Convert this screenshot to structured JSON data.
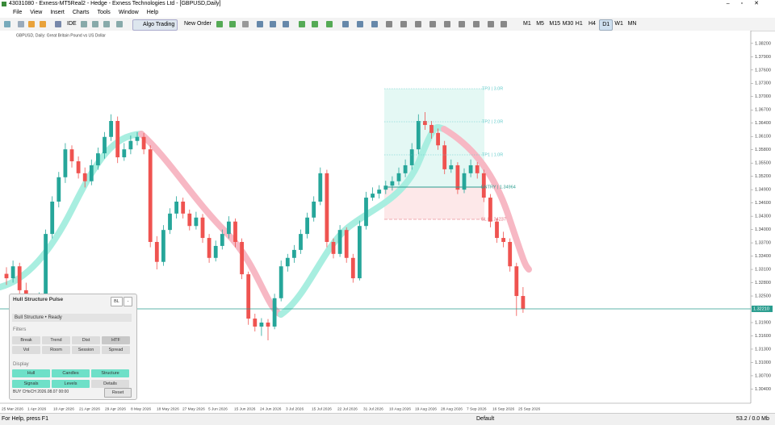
{
  "window": {
    "title": "43031080 - Exness-MT5Real2 - Hedge - Exness Technologies Ltd - [GBPUSD,Daily]",
    "menu": [
      "File",
      "View",
      "Insert",
      "Charts",
      "Tools",
      "Window",
      "Help"
    ]
  },
  "toolbar": {
    "ide": "IDE",
    "algo": "Algo Trading",
    "new_order": "New Order",
    "timeframes": [
      "M1",
      "M5",
      "M15",
      "M30",
      "H1",
      "H4",
      "D1",
      "W1",
      "MN"
    ],
    "active_timeframe": "D1"
  },
  "chart": {
    "symbol_info": "GBPUSD, Daily: Great Britain Pound vs US Dollar",
    "price_axis": [
      {
        "value": 1.382,
        "label": "1.38200"
      },
      {
        "value": 1.379,
        "label": "1.37900"
      },
      {
        "value": 1.376,
        "label": "1.37600"
      },
      {
        "value": 1.373,
        "label": "1.37300"
      },
      {
        "value": 1.37,
        "label": "1.37000"
      },
      {
        "value": 1.367,
        "label": "1.36700"
      },
      {
        "value": 1.364,
        "label": "1.36400"
      },
      {
        "value": 1.361,
        "label": "1.36100"
      },
      {
        "value": 1.358,
        "label": "1.35800"
      },
      {
        "value": 1.355,
        "label": "1.35500"
      },
      {
        "value": 1.352,
        "label": "1.35200"
      },
      {
        "value": 1.349,
        "label": "1.34900"
      },
      {
        "value": 1.346,
        "label": "1.34600"
      },
      {
        "value": 1.343,
        "label": "1.34300"
      },
      {
        "value": 1.34,
        "label": "1.34000"
      },
      {
        "value": 1.337,
        "label": "1.33700"
      },
      {
        "value": 1.334,
        "label": "1.33400"
      },
      {
        "value": 1.331,
        "label": "1.33100"
      },
      {
        "value": 1.328,
        "label": "1.32800"
      },
      {
        "value": 1.325,
        "label": "1.32500"
      },
      {
        "value": 1.319,
        "label": "1.31900"
      },
      {
        "value": 1.316,
        "label": "1.31600"
      },
      {
        "value": 1.313,
        "label": "1.31300"
      },
      {
        "value": 1.31,
        "label": "1.31000"
      },
      {
        "value": 1.307,
        "label": "1.30700"
      },
      {
        "value": 1.304,
        "label": "1.30400"
      }
    ],
    "current_price": {
      "value": 1.3221,
      "label": "1.32210"
    },
    "dates": [
      "25 Mar 2026",
      "1 Apr 2026",
      "10 Apr 2026",
      "21 Apr 2026",
      "29 Apr 2026",
      "8 May 2026",
      "18 May 2026",
      "27 May 2026",
      "5 Jun 2026",
      "15 Jun 2026",
      "24 Jun 2026",
      "3 Jul 2026",
      "15 Jul 2026",
      "22 Jul 2026",
      "31 Jul 2026",
      "10 Aug 2026",
      "19 Aug 2026",
      "28 Aug 2026",
      "7 Sep 2026",
      "16 Sep 2026",
      "25 Sep 2026"
    ],
    "candles": [
      [
        1.33,
        1.3315,
        1.3275,
        1.329
      ],
      [
        1.329,
        1.333,
        1.328,
        1.3317
      ],
      [
        1.3317,
        1.3325,
        1.3255,
        1.3263
      ],
      [
        1.3263,
        1.328,
        1.3215,
        1.3226
      ],
      [
        1.3226,
        1.324,
        1.3185,
        1.3199
      ],
      [
        1.3199,
        1.3258,
        1.319,
        1.3245
      ],
      [
        1.3245,
        1.34,
        1.3235,
        1.339
      ],
      [
        1.339,
        1.3475,
        1.338,
        1.3463
      ],
      [
        1.3463,
        1.353,
        1.345,
        1.3518
      ],
      [
        1.3518,
        1.3595,
        1.3505,
        1.3581
      ],
      [
        1.3581,
        1.359,
        1.354,
        1.3554
      ],
      [
        1.3554,
        1.3565,
        1.3515,
        1.3527
      ],
      [
        1.3527,
        1.354,
        1.3495,
        1.3509
      ],
      [
        1.3509,
        1.3558,
        1.35,
        1.3545
      ],
      [
        1.3545,
        1.3585,
        1.3535,
        1.3572
      ],
      [
        1.3572,
        1.362,
        1.356,
        1.3609
      ],
      [
        1.3609,
        1.366,
        1.36,
        1.3645
      ],
      [
        1.3645,
        1.3655,
        1.355,
        1.3563
      ],
      [
        1.3563,
        1.3595,
        1.3555,
        1.3581
      ],
      [
        1.3581,
        1.3612,
        1.357,
        1.36
      ],
      [
        1.36,
        1.362,
        1.359,
        1.3609
      ],
      [
        1.3609,
        1.3618,
        1.357,
        1.3581
      ],
      [
        1.3581,
        1.359,
        1.336,
        1.3372
      ],
      [
        1.3372,
        1.3385,
        1.331,
        1.3327
      ],
      [
        1.3327,
        1.341,
        1.3318,
        1.3399
      ],
      [
        1.3399,
        1.3448,
        1.339,
        1.3436
      ],
      [
        1.3436,
        1.3475,
        1.3425,
        1.3463
      ],
      [
        1.3463,
        1.3472,
        1.3425,
        1.3436
      ],
      [
        1.3436,
        1.3445,
        1.3398,
        1.3408
      ],
      [
        1.3408,
        1.344,
        1.34,
        1.3427
      ],
      [
        1.3427,
        1.3435,
        1.337,
        1.3381
      ],
      [
        1.3381,
        1.339,
        1.3325,
        1.3336
      ],
      [
        1.3336,
        1.3375,
        1.3328,
        1.3363
      ],
      [
        1.3363,
        1.34,
        1.3355,
        1.339
      ],
      [
        1.339,
        1.343,
        1.338,
        1.3418
      ],
      [
        1.3418,
        1.3425,
        1.336,
        1.3372
      ],
      [
        1.3372,
        1.338,
        1.3288,
        1.3299
      ],
      [
        1.3299,
        1.3305,
        1.3185,
        1.3199
      ],
      [
        1.3199,
        1.321,
        1.317,
        1.3181
      ],
      [
        1.3181,
        1.32,
        1.316,
        1.319
      ],
      [
        1.319,
        1.3198,
        1.315,
        1.3181
      ],
      [
        1.3181,
        1.3255,
        1.3175,
        1.3245
      ],
      [
        1.3245,
        1.333,
        1.3238,
        1.3317
      ],
      [
        1.3317,
        1.3345,
        1.3305,
        1.3336
      ],
      [
        1.3336,
        1.3365,
        1.3325,
        1.3354
      ],
      [
        1.3354,
        1.34,
        1.3345,
        1.339
      ],
      [
        1.339,
        1.3438,
        1.338,
        1.3427
      ],
      [
        1.3427,
        1.3475,
        1.3418,
        1.3463
      ],
      [
        1.3463,
        1.354,
        1.3455,
        1.3527
      ],
      [
        1.3527,
        1.3535,
        1.336,
        1.3372
      ],
      [
        1.3372,
        1.338,
        1.3335,
        1.3345
      ],
      [
        1.3345,
        1.341,
        1.3338,
        1.3399
      ],
      [
        1.3399,
        1.3405,
        1.3325,
        1.3336
      ],
      [
        1.3336,
        1.3345,
        1.328,
        1.329
      ],
      [
        1.329,
        1.342,
        1.3285,
        1.3408
      ],
      [
        1.3408,
        1.3485,
        1.34,
        1.3472
      ],
      [
        1.3472,
        1.3495,
        1.3465,
        1.3481
      ],
      [
        1.3481,
        1.35,
        1.347,
        1.349
      ],
      [
        1.349,
        1.351,
        1.348,
        1.3499
      ],
      [
        1.3499,
        1.352,
        1.3488,
        1.3509
      ],
      [
        1.3509,
        1.354,
        1.35,
        1.3527
      ],
      [
        1.3527,
        1.3558,
        1.3518,
        1.3545
      ],
      [
        1.3545,
        1.3595,
        1.3535,
        1.3581
      ],
      [
        1.3581,
        1.366,
        1.357,
        1.3645
      ],
      [
        1.3645,
        1.3665,
        1.3625,
        1.3636
      ],
      [
        1.3636,
        1.3645,
        1.3605,
        1.3618
      ],
      [
        1.3618,
        1.3628,
        1.358,
        1.359
      ],
      [
        1.359,
        1.36,
        1.3525,
        1.3536
      ],
      [
        1.3536,
        1.3558,
        1.3528,
        1.3545
      ],
      [
        1.3545,
        1.3552,
        1.348,
        1.349
      ],
      [
        1.349,
        1.3538,
        1.3482,
        1.3527
      ],
      [
        1.3527,
        1.3558,
        1.3518,
        1.3545
      ],
      [
        1.3545,
        1.3552,
        1.3515,
        1.3527
      ],
      [
        1.3527,
        1.3535,
        1.3462,
        1.3472
      ],
      [
        1.3472,
        1.348,
        1.3405,
        1.3418
      ],
      [
        1.3418,
        1.3425,
        1.337,
        1.3381
      ],
      [
        1.3381,
        1.3395,
        1.336,
        1.3372
      ],
      [
        1.3372,
        1.338,
        1.3305,
        1.3317
      ],
      [
        1.3317,
        1.3325,
        1.3205,
        1.325
      ],
      [
        1.325,
        1.327,
        1.3212,
        1.3221
      ]
    ],
    "position": {
      "levels": [
        "TP3 | 3.0R",
        "TP2 | 2.0R",
        "TP1 | 1.0R",
        "ENTRY | 1.34964",
        "SL | 1.34237"
      ]
    }
  },
  "panel": {
    "title": "Hull Structure Pulse",
    "corner": "BL",
    "minimize": "-",
    "status": "Bull Structure • Ready",
    "filters_title": "Filters",
    "filters": [
      {
        "label": "Break",
        "active": false
      },
      {
        "label": "Trend",
        "active": false
      },
      {
        "label": "Dist",
        "active": false
      },
      {
        "label": "HTF",
        "active": false
      },
      {
        "label": "Vol",
        "active": false
      },
      {
        "label": "Room",
        "active": false
      },
      {
        "label": "Session",
        "active": false
      },
      {
        "label": "Spread",
        "active": false
      }
    ],
    "display_title": "Display",
    "display": [
      {
        "label": "Hull",
        "active": true
      },
      {
        "label": "Candles",
        "active": true
      },
      {
        "label": "Structure",
        "active": true
      },
      {
        "label": "Signals",
        "active": true
      },
      {
        "label": "Levels",
        "active": true
      },
      {
        "label": "Details",
        "active": false
      }
    ],
    "signal": "BUY CHoCH 2026.08.07 00:00",
    "reset": "Reset"
  },
  "status": {
    "help": "For Help, press F1",
    "profile": "Default",
    "memory": "53.2 / 0.0 Mb"
  }
}
